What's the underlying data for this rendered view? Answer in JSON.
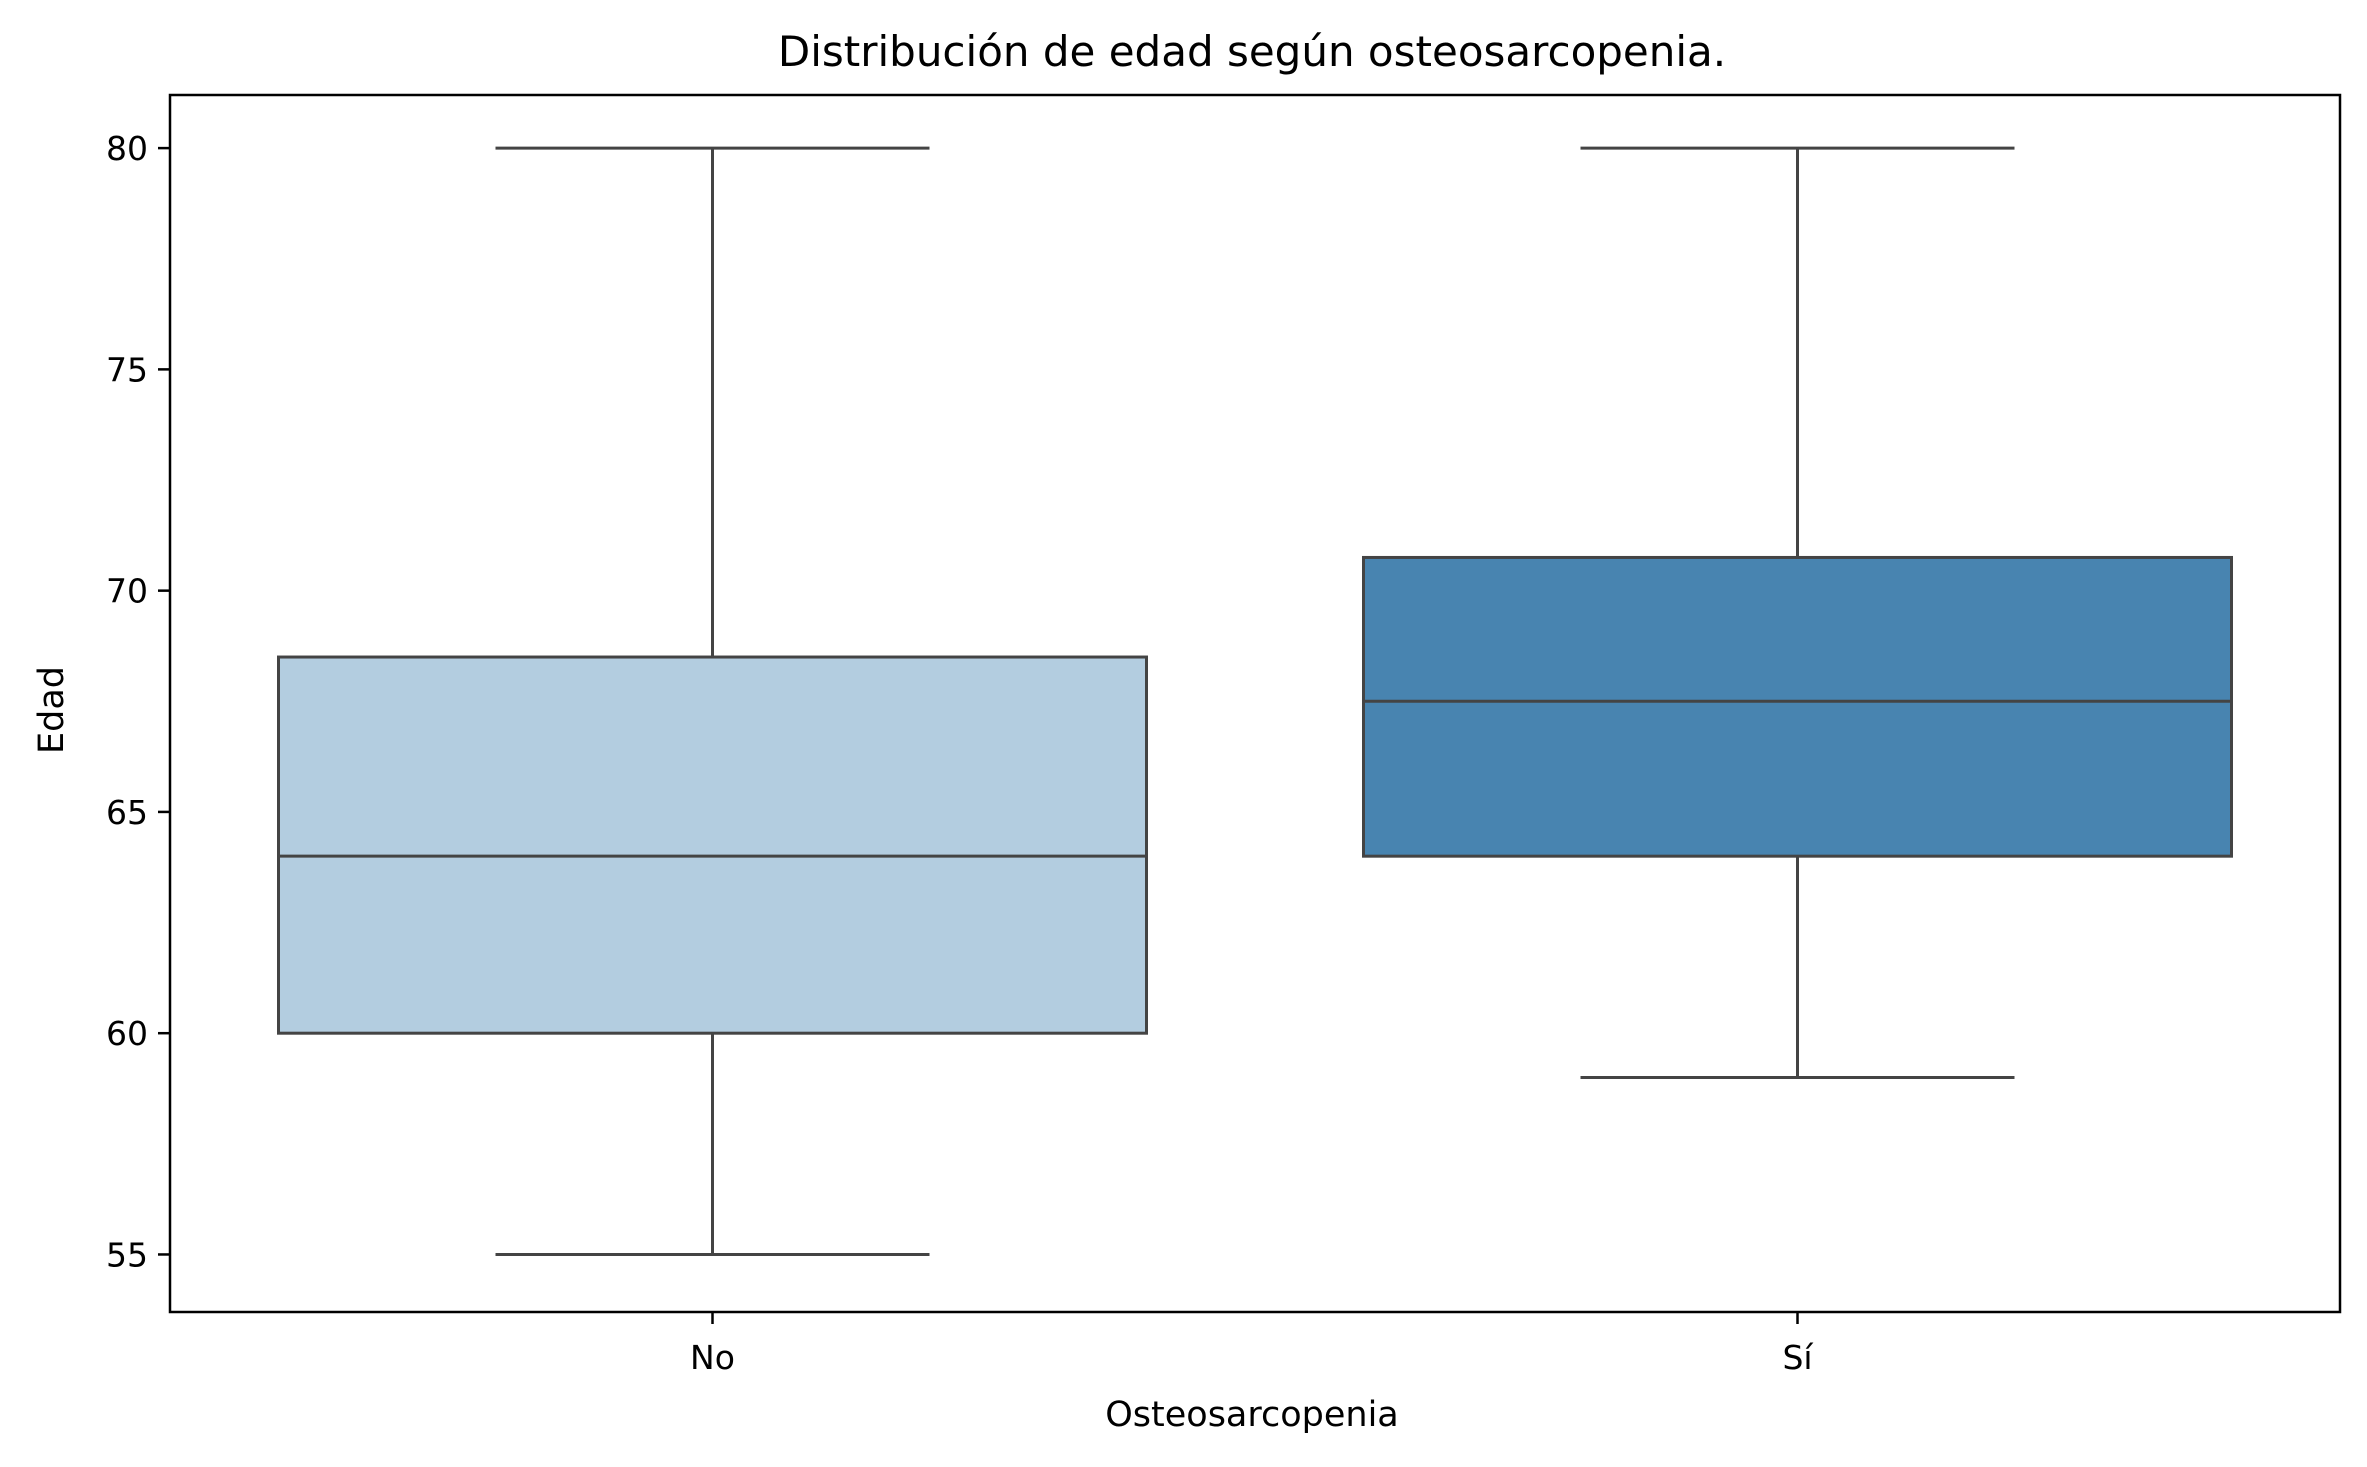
{
  "chart_data": {
    "type": "box",
    "title": "Distribución de edad según osteosarcopenia.",
    "xlabel": "Osteosarcopenia",
    "ylabel": "Edad",
    "ylim": [
      53.7,
      81.2
    ],
    "yticks": [
      "55",
      "60",
      "65",
      "70",
      "75",
      "80"
    ],
    "grid": false,
    "legend": "none",
    "categories": [
      "No",
      "Sí"
    ],
    "boxes": [
      {
        "category": "No",
        "whisker_low": 55,
        "q1": 60,
        "median": 64,
        "q3": 68.5,
        "whisker_high": 80,
        "color": "#b3cde0"
      },
      {
        "category": "Sí",
        "whisker_low": 59,
        "q1": 64,
        "median": 67.5,
        "q3": 70.75,
        "whisker_high": 80,
        "color": "#4884b0"
      }
    ],
    "line_color": "#444444"
  }
}
